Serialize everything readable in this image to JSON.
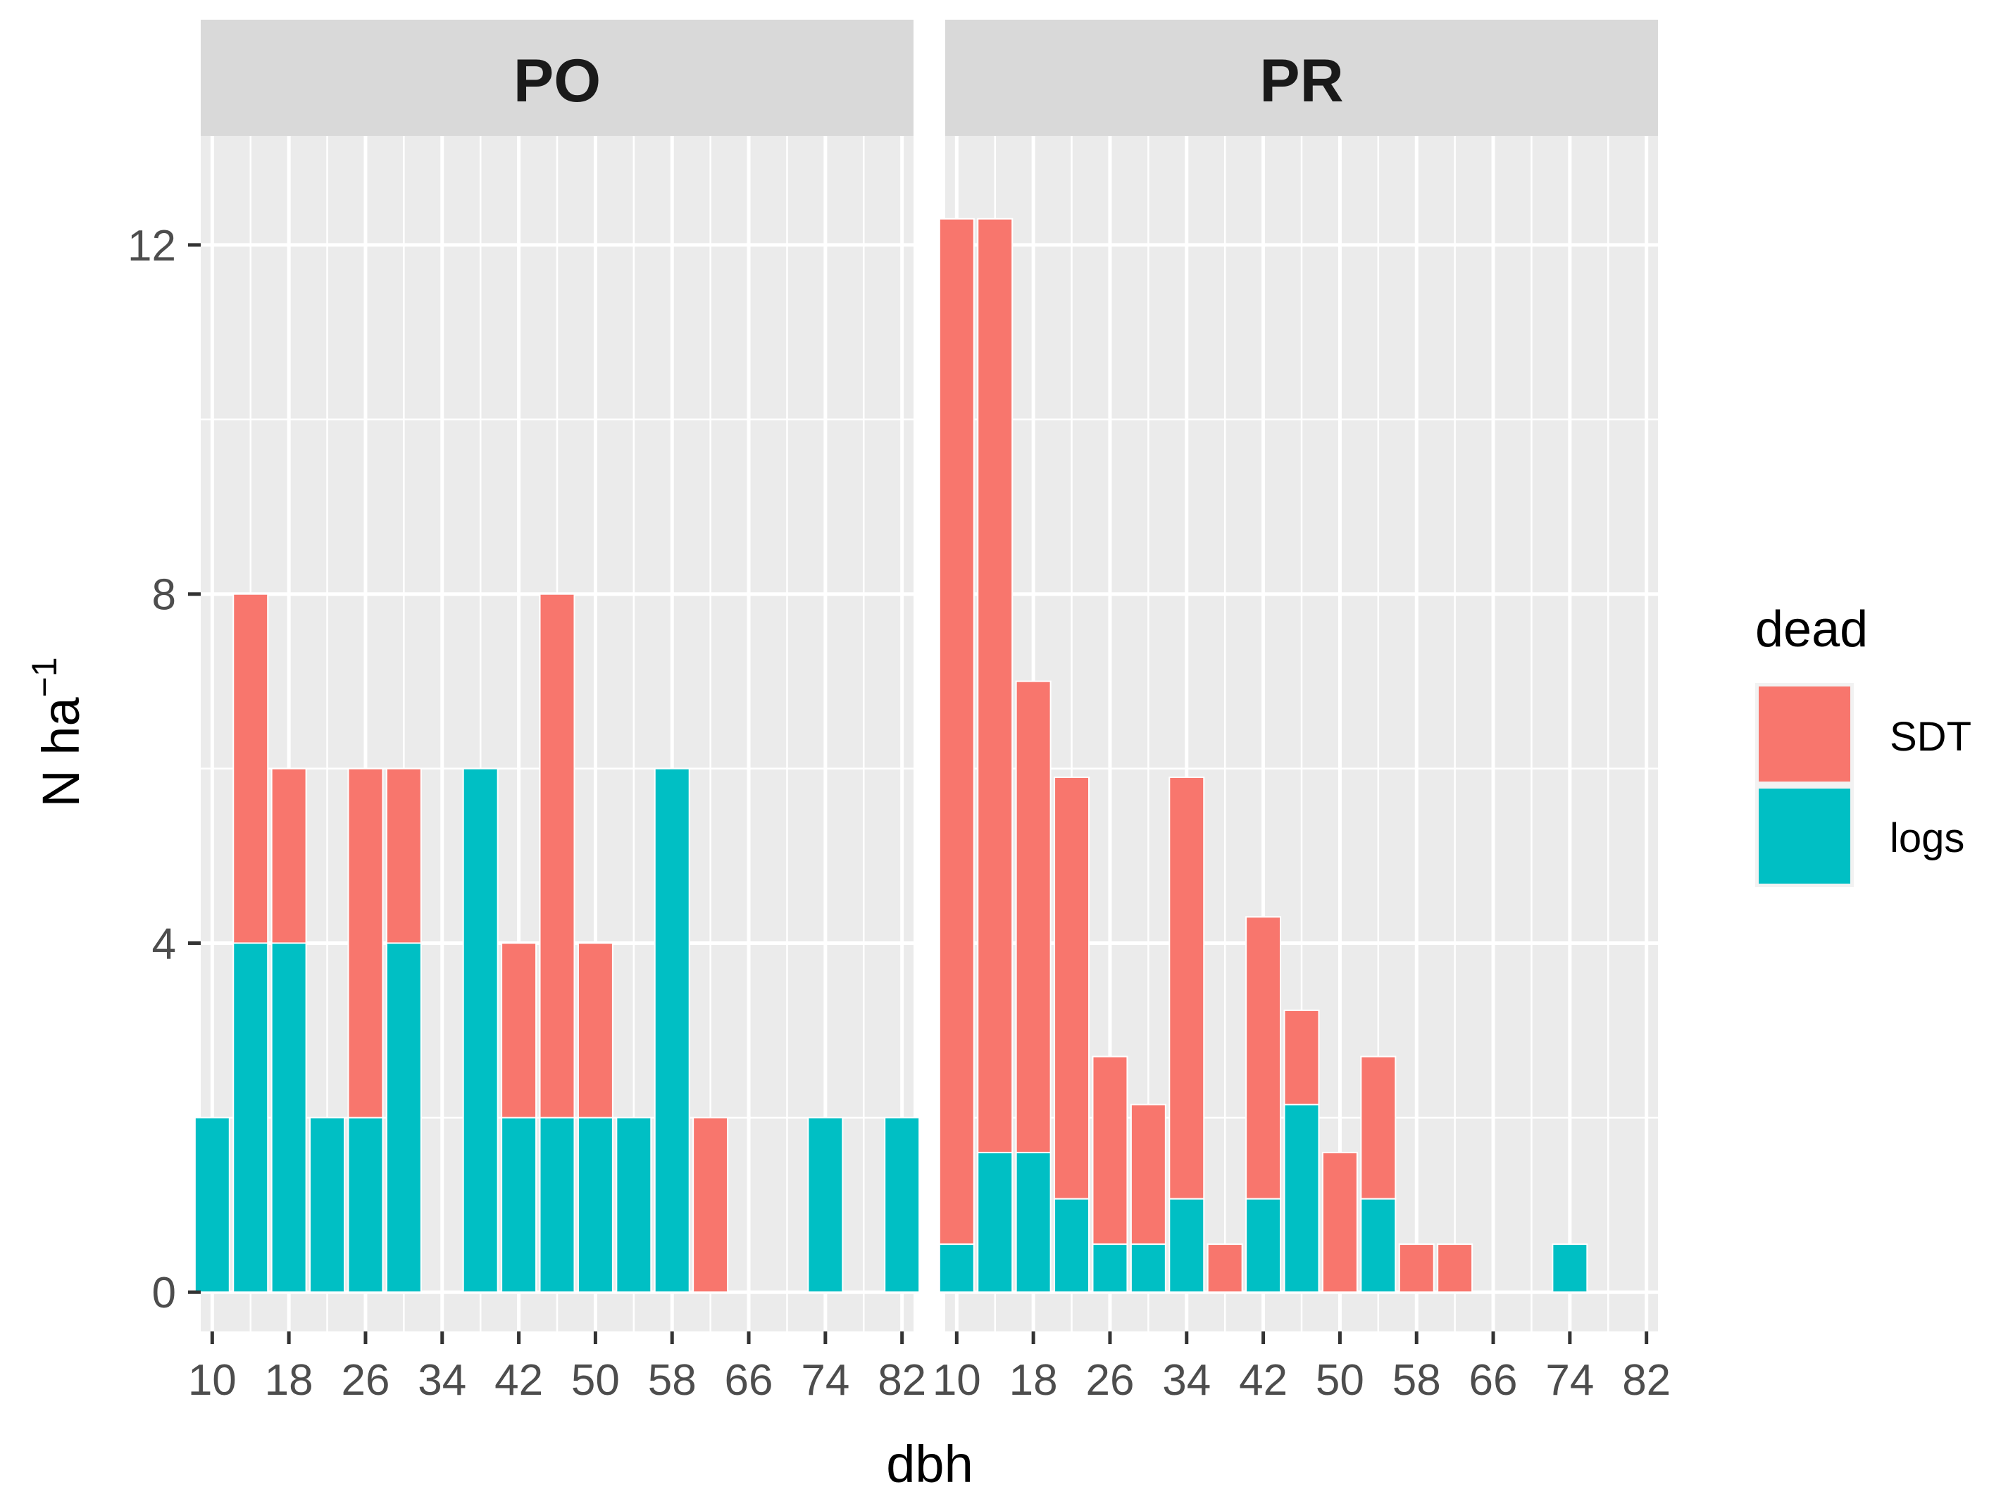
{
  "chart_data": {
    "type": "bar",
    "stacked": true,
    "xlabel": "dbh",
    "ylabel_main": "N ha",
    "ylabel_sup": "−1",
    "ylim": [
      -0.45,
      13.25
    ],
    "y_ticks": [
      0,
      4,
      8,
      12
    ],
    "y_tick_labels": [
      "0",
      "4",
      "8",
      "12"
    ],
    "xlim": [
      8.8,
      83.2
    ],
    "x_ticks": [
      10,
      18,
      26,
      34,
      42,
      50,
      58,
      66,
      74,
      82
    ],
    "x_tick_labels": [
      "10",
      "18",
      "26",
      "34",
      "42",
      "50",
      "58",
      "66",
      "74",
      "82"
    ],
    "bar_width": 3.6,
    "legend": {
      "title": "dead",
      "position": "right",
      "entries": [
        {
          "label": "SDT",
          "color": "#F8766D"
        },
        {
          "label": "logs",
          "color": "#00BFC4"
        }
      ]
    },
    "series_colors": {
      "SDT": "#F8766D",
      "logs": "#00BFC4"
    },
    "panels": [
      {
        "name": "PO",
        "bars": [
          {
            "x": 10,
            "logs": 2,
            "SDT": 0
          },
          {
            "x": 14,
            "logs": 4,
            "SDT": 4
          },
          {
            "x": 18,
            "logs": 4,
            "SDT": 2
          },
          {
            "x": 22,
            "logs": 2,
            "SDT": 0
          },
          {
            "x": 26,
            "logs": 2,
            "SDT": 4
          },
          {
            "x": 30,
            "logs": 4,
            "SDT": 2
          },
          {
            "x": 38,
            "logs": 6,
            "SDT": 0
          },
          {
            "x": 42,
            "logs": 2,
            "SDT": 2
          },
          {
            "x": 46,
            "logs": 2,
            "SDT": 6
          },
          {
            "x": 50,
            "logs": 2,
            "SDT": 2
          },
          {
            "x": 54,
            "logs": 2,
            "SDT": 0
          },
          {
            "x": 58,
            "logs": 6,
            "SDT": 0
          },
          {
            "x": 62,
            "logs": 0,
            "SDT": 2
          },
          {
            "x": 74,
            "logs": 2,
            "SDT": 0
          },
          {
            "x": 82,
            "logs": 2,
            "SDT": 0
          }
        ]
      },
      {
        "name": "PR",
        "bars": [
          {
            "x": 10,
            "logs": 0.55,
            "SDT": 11.75
          },
          {
            "x": 14,
            "logs": 1.6,
            "SDT": 10.7
          },
          {
            "x": 18,
            "logs": 1.6,
            "SDT": 5.4
          },
          {
            "x": 22,
            "logs": 1.07,
            "SDT": 4.83
          },
          {
            "x": 26,
            "logs": 0.55,
            "SDT": 2.15
          },
          {
            "x": 30,
            "logs": 0.55,
            "SDT": 1.6
          },
          {
            "x": 34,
            "logs": 1.07,
            "SDT": 4.83
          },
          {
            "x": 38,
            "logs": 0,
            "SDT": 0.55
          },
          {
            "x": 42,
            "logs": 1.07,
            "SDT": 3.23
          },
          {
            "x": 46,
            "logs": 2.15,
            "SDT": 1.08
          },
          {
            "x": 50,
            "logs": 0,
            "SDT": 1.6
          },
          {
            "x": 54,
            "logs": 1.07,
            "SDT": 1.63
          },
          {
            "x": 58,
            "logs": 0,
            "SDT": 0.55
          },
          {
            "x": 62,
            "logs": 0,
            "SDT": 0.55
          },
          {
            "x": 74,
            "logs": 0.55,
            "SDT": 0
          }
        ]
      }
    ]
  }
}
